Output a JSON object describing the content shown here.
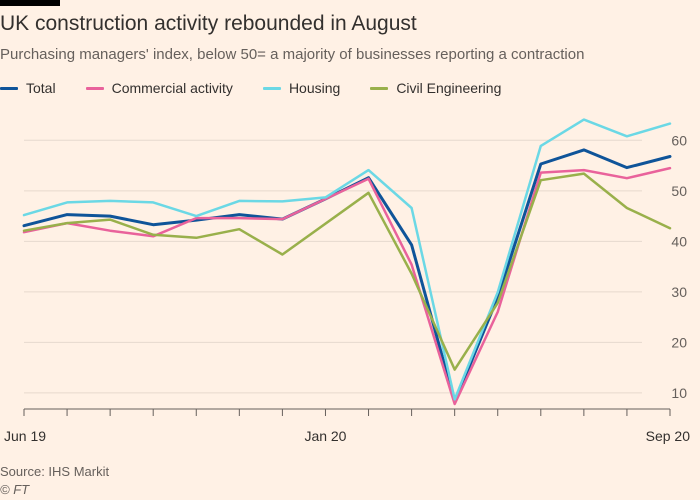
{
  "header": {
    "title": "UK construction activity rebounded in August",
    "subtitle": "Purchasing managers' index, below 50= a majority of businesses reporting a contraction"
  },
  "footer": {
    "source": "Source: IHS Markit",
    "copyright": "© FT"
  },
  "chart_data": {
    "type": "line",
    "title": "UK construction activity rebounded in August",
    "subtitle": "Purchasing managers' index, below 50= a majority of businesses reporting a contraction",
    "xlabel": "",
    "ylabel": "",
    "x": [
      "2019-06",
      "2019-07",
      "2019-08",
      "2019-09",
      "2019-10",
      "2019-11",
      "2019-12",
      "2020-01",
      "2020-02",
      "2020-03",
      "2020-04",
      "2020-05",
      "2020-06",
      "2020-07",
      "2020-08",
      "2020-09"
    ],
    "x_tick_labels": [
      {
        "x": "2019-06",
        "label": "Jun 19"
      },
      {
        "x": "2020-01",
        "label": "Jan 20"
      },
      {
        "x": "2020-09",
        "label": "Sep 20"
      }
    ],
    "ylim": [
      7,
      66
    ],
    "y_ticks": [
      10,
      20,
      30,
      40,
      50,
      60
    ],
    "y_axis_position": "right",
    "grid": true,
    "legend_position": "top-left",
    "series": [
      {
        "name": "Total",
        "color": "#0f5499",
        "values": [
          43.1,
          45.3,
          45.0,
          43.3,
          44.2,
          45.3,
          44.4,
          48.4,
          52.6,
          39.3,
          8.2,
          28.9,
          55.3,
          58.1,
          54.6,
          56.8
        ]
      },
      {
        "name": "Commercial activity",
        "color": "#e9629b",
        "values": [
          41.8,
          43.6,
          42.1,
          41.0,
          44.6,
          44.6,
          44.4,
          null,
          52.4,
          35.4,
          7.8,
          26.0,
          53.6,
          54.1,
          52.5,
          54.5
        ]
      },
      {
        "name": "Housing",
        "color": "#6bd8e5",
        "values": [
          45.2,
          47.7,
          48.0,
          47.7,
          45.0,
          48.0,
          47.9,
          48.7,
          54.1,
          46.6,
          8.7,
          29.9,
          58.9,
          64.1,
          60.8,
          63.3
        ]
      },
      {
        "name": "Civil Engineering",
        "color": "#99b04b",
        "values": null,
        "points": [
          {
            "x": "2019-06",
            "y": 42.1
          },
          {
            "x": "2019-07",
            "y": 43.6
          },
          {
            "x": "2019-08",
            "y": 44.3
          },
          {
            "x": "2019-09",
            "y": 41.3
          },
          {
            "x": "2019-10",
            "y": 40.7
          },
          {
            "x": "2019-11",
            "y": 42.4
          },
          {
            "x": "2019-12",
            "y": 37.4
          },
          {
            "x": "2020-02",
            "y": 49.6
          },
          {
            "x": "2020-03",
            "y": 33.6
          },
          {
            "x": "2020-04",
            "y": 14.6
          },
          {
            "x": "2020-05",
            "y": 27.8
          },
          {
            "x": "2020-06",
            "y": 52.1
          },
          {
            "x": "2020-07",
            "y": 53.4
          },
          {
            "x": "2020-08",
            "y": 46.6
          },
          {
            "x": "2020-09",
            "y": 42.6
          }
        ]
      }
    ]
  }
}
